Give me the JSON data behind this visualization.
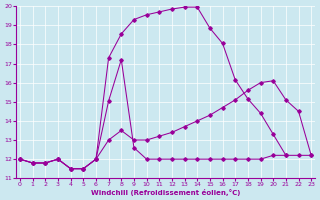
{
  "xlabel": "Windchill (Refroidissement éolien,°C)",
  "bg_color": "#cce8f0",
  "line_color": "#990099",
  "xlim_min": -0.3,
  "xlim_max": 23.3,
  "ylim_min": 11,
  "ylim_max": 20,
  "xticks": [
    0,
    1,
    2,
    3,
    4,
    5,
    6,
    7,
    8,
    9,
    10,
    11,
    12,
    13,
    14,
    15,
    16,
    17,
    18,
    19,
    20,
    21,
    22,
    23
  ],
  "yticks": [
    11,
    12,
    13,
    14,
    15,
    16,
    17,
    18,
    19,
    20
  ],
  "curve_arch_x": [
    0,
    1,
    2,
    3,
    4,
    5,
    6,
    7,
    8,
    9,
    10,
    11,
    12,
    13,
    14,
    15,
    16,
    17,
    18,
    19,
    20,
    21
  ],
  "curve_arch_y": [
    12.0,
    11.8,
    11.8,
    12.0,
    11.5,
    11.5,
    12.0,
    17.3,
    18.55,
    19.3,
    19.55,
    19.7,
    19.85,
    19.95,
    19.95,
    18.85,
    18.05,
    16.15,
    15.15,
    14.4,
    13.3,
    12.2
  ],
  "curve_diag_x": [
    0,
    1,
    2,
    3,
    4,
    5,
    6,
    7,
    8,
    9,
    10,
    11,
    12,
    13,
    14,
    15,
    16,
    17,
    18,
    19,
    20,
    21,
    22,
    23
  ],
  "curve_diag_y": [
    12.0,
    11.8,
    11.8,
    12.0,
    11.5,
    11.5,
    12.0,
    13.0,
    13.5,
    13.0,
    13.0,
    13.2,
    13.4,
    13.7,
    14.0,
    14.3,
    14.7,
    15.1,
    15.6,
    16.0,
    16.1,
    15.1,
    14.5,
    12.2
  ],
  "curve_flat_x": [
    0,
    1,
    2,
    3,
    4,
    5,
    6,
    7,
    8,
    9,
    10,
    11,
    12,
    13,
    14,
    15,
    16,
    17,
    18,
    19,
    20,
    21,
    22,
    23
  ],
  "curve_flat_y": [
    12.0,
    11.8,
    11.8,
    12.0,
    11.5,
    11.5,
    12.0,
    15.05,
    17.2,
    12.6,
    12.0,
    12.0,
    12.0,
    12.0,
    12.0,
    12.0,
    12.0,
    12.0,
    12.0,
    12.0,
    12.2,
    12.2,
    12.2,
    12.2
  ]
}
